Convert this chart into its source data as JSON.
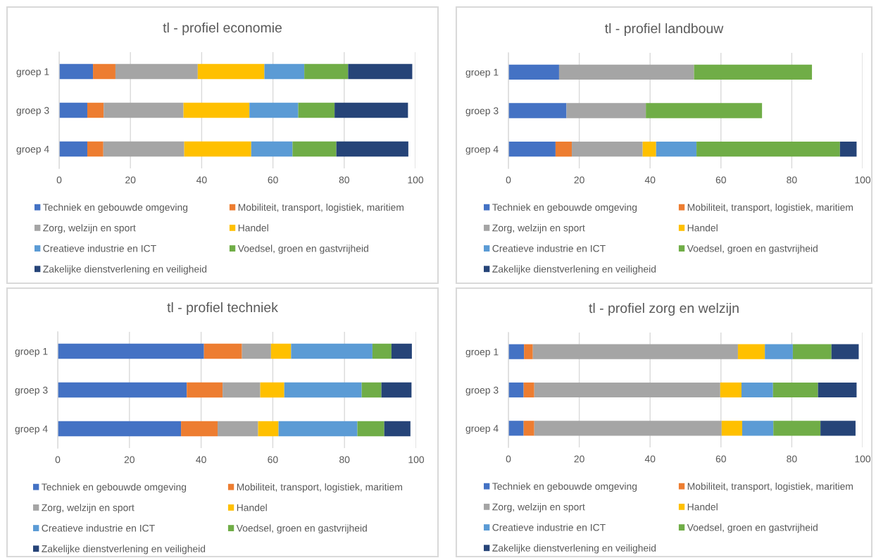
{
  "chart_data": [
    {
      "type": "bar",
      "title": "tl - profiel economie",
      "orientation": "horizontal",
      "stacked": true,
      "categories": [
        "groep 1",
        "groep 3",
        "groep 4"
      ],
      "xlim": [
        0,
        100
      ],
      "xticks": [
        0,
        20,
        40,
        60,
        80,
        100
      ],
      "grid": "x",
      "legend": "bottom",
      "series": [
        {
          "name": "Techniek en gebouwde omgeving",
          "color": "#4472c4",
          "values": [
            9.5,
            7.9,
            7.9
          ]
        },
        {
          "name": "Mobiliteit, transport, logistiek, maritiem",
          "color": "#ed7d31",
          "values": [
            6.3,
            4.6,
            4.5
          ]
        },
        {
          "name": "Zorg, welzijn en sport",
          "color": "#a5a5a5",
          "values": [
            23.1,
            22.4,
            22.7
          ]
        },
        {
          "name": "Handel",
          "color": "#ffc000",
          "values": [
            18.7,
            18.5,
            18.8
          ]
        },
        {
          "name": "Creatieve industrie en ICT",
          "color": "#5b9bd5",
          "values": [
            11.2,
            13.7,
            11.6
          ]
        },
        {
          "name": "Voedsel, groen en gastvrijheid",
          "color": "#70ad47",
          "values": [
            12.3,
            10.2,
            12.3
          ]
        },
        {
          "name": "Zakelijke dienstverlening en veiligheid",
          "color": "#264478",
          "values": [
            18.0,
            20.6,
            20.2
          ]
        }
      ]
    },
    {
      "type": "bar",
      "title": "tl - profiel landbouw",
      "orientation": "horizontal",
      "stacked": true,
      "categories": [
        "groep 1",
        "groep 3",
        "groep 4"
      ],
      "xlim": [
        0,
        100
      ],
      "xticks": [
        0,
        20,
        40,
        60,
        80,
        100
      ],
      "grid": "x",
      "legend": "bottom",
      "series": [
        {
          "name": "Techniek en gebouwde omgeving",
          "color": "#4472c4",
          "values": [
            14.3,
            16.4,
            13.3
          ]
        },
        {
          "name": "Mobiliteit, transport, logistiek, maritiem",
          "color": "#ed7d31",
          "values": [
            null,
            null,
            4.6
          ]
        },
        {
          "name": "Zorg, welzijn en sport",
          "color": "#a5a5a5",
          "values": [
            38.1,
            22.4,
            20.0
          ]
        },
        {
          "name": "Handel",
          "color": "#ffc000",
          "values": [
            null,
            null,
            3.8
          ]
        },
        {
          "name": "Creatieve industrie en ICT",
          "color": "#5b9bd5",
          "values": [
            null,
            null,
            11.4
          ]
        },
        {
          "name": "Voedsel, groen en gastvrijheid",
          "color": "#70ad47",
          "values": [
            33.3,
            32.8,
            40.5
          ]
        },
        {
          "name": "Zakelijke dienstverlening en veiligheid",
          "color": "#264478",
          "values": [
            null,
            null,
            4.7
          ]
        }
      ]
    },
    {
      "type": "bar",
      "title": "tl - profiel techniek",
      "orientation": "horizontal",
      "stacked": true,
      "categories": [
        "groep 1",
        "groep 3",
        "groep 4"
      ],
      "xlim": [
        0,
        100
      ],
      "xticks": [
        0,
        20,
        40,
        60,
        80,
        100
      ],
      "grid": "x",
      "legend": "bottom",
      "series": [
        {
          "name": "Techniek en gebouwde omgeving",
          "color": "#4472c4",
          "values": [
            40.8,
            36.0,
            34.4
          ]
        },
        {
          "name": "Mobiliteit, transport, logistiek, maritiem",
          "color": "#ed7d31",
          "values": [
            10.6,
            10.0,
            10.2
          ]
        },
        {
          "name": "Zorg, welzijn en sport",
          "color": "#a5a5a5",
          "values": [
            8.1,
            10.5,
            11.3
          ]
        },
        {
          "name": "Handel",
          "color": "#ffc000",
          "values": [
            5.6,
            6.7,
            5.7
          ]
        },
        {
          "name": "Creatieve industrie en ICT",
          "color": "#5b9bd5",
          "values": [
            22.7,
            21.6,
            22.0
          ]
        },
        {
          "name": "Voedsel, groen en gastvrijheid",
          "color": "#70ad47",
          "values": [
            5.3,
            5.5,
            7.5
          ]
        },
        {
          "name": "Zakelijke dienstverlening en veiligheid",
          "color": "#264478",
          "values": [
            5.7,
            8.4,
            7.3
          ]
        }
      ]
    },
    {
      "type": "bar",
      "title": "tl - profiel zorg en welzijn",
      "orientation": "horizontal",
      "stacked": true,
      "categories": [
        "groep 1",
        "groep 3",
        "groep 4"
      ],
      "xlim": [
        0,
        100
      ],
      "xticks": [
        0,
        20,
        40,
        60,
        80,
        100
      ],
      "grid": "x",
      "legend": "bottom",
      "series": [
        {
          "name": "Techniek en gebouwde omgeving",
          "color": "#4472c4",
          "values": [
            4.4,
            4.3,
            4.3
          ]
        },
        {
          "name": "Mobiliteit, transport, logistiek, maritiem",
          "color": "#ed7d31",
          "values": [
            2.5,
            3.0,
            3.0
          ]
        },
        {
          "name": "Zorg, welzijn en sport",
          "color": "#a5a5a5",
          "values": [
            57.9,
            52.5,
            52.9
          ]
        },
        {
          "name": "Handel",
          "color": "#ffc000",
          "values": [
            7.6,
            6.0,
            5.8
          ]
        },
        {
          "name": "Creatieve industrie en ICT",
          "color": "#5b9bd5",
          "values": [
            7.9,
            8.9,
            8.8
          ]
        },
        {
          "name": "Voedsel, groen en gastvrijheid",
          "color": "#70ad47",
          "values": [
            10.9,
            12.7,
            13.3
          ]
        },
        {
          "name": "Zakelijke dienstverlening en veiligheid",
          "color": "#264478",
          "values": [
            7.7,
            10.9,
            9.9
          ]
        }
      ]
    }
  ]
}
